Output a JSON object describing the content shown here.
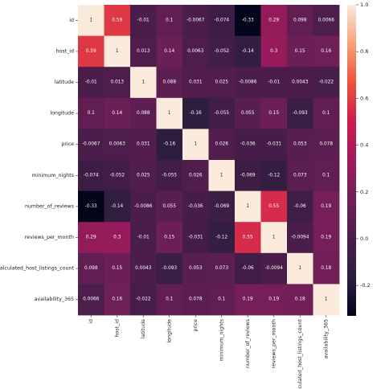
{
  "chart_data": {
    "type": "heatmap",
    "variables": [
      "id",
      "host_id",
      "latitude",
      "longitude",
      "price",
      "minimum_nights",
      "number_of_reviews",
      "reviews_per_month",
      "calculated_host_listings_count",
      "availability_365"
    ],
    "values": [
      [
        1,
        0.59,
        -0.01,
        0.1,
        -0.0067,
        -0.074,
        -0.33,
        0.29,
        0.098,
        0.0066
      ],
      [
        0.59,
        1,
        0.013,
        0.14,
        0.0063,
        -0.052,
        -0.14,
        0.3,
        0.15,
        0.16
      ],
      [
        -0.01,
        0.013,
        1,
        0.088,
        0.031,
        0.025,
        -0.0086,
        -0.01,
        0.0043,
        -0.022
      ],
      [
        0.1,
        0.14,
        0.088,
        1,
        -0.16,
        -0.055,
        0.055,
        0.15,
        -0.093,
        0.1
      ],
      [
        -0.0067,
        0.0063,
        0.031,
        -0.16,
        1,
        0.026,
        -0.036,
        -0.031,
        0.053,
        0.078
      ],
      [
        -0.074,
        -0.052,
        0.025,
        -0.055,
        0.026,
        1,
        -0.069,
        -0.12,
        0.073,
        0.1
      ],
      [
        -0.33,
        -0.14,
        -0.0086,
        0.055,
        -0.036,
        -0.069,
        1,
        0.55,
        -0.06,
        0.19
      ],
      [
        0.29,
        0.3,
        -0.01,
        0.15,
        -0.031,
        -0.12,
        0.55,
        1,
        -0.0094,
        0.19
      ],
      [
        0.098,
        0.15,
        0.0043,
        -0.093,
        0.053,
        0.073,
        -0.06,
        -0.0094,
        1,
        0.18
      ],
      [
        0.0066,
        0.16,
        -0.022,
        0.1,
        0.078,
        0.1,
        0.19,
        0.19,
        0.18,
        1
      ]
    ],
    "vmin": -0.33,
    "vmax": 1.0,
    "colormap": "rocket",
    "colorbar_ticks": [
      "1.0",
      "0.8",
      "0.6",
      "0.4",
      "0.2",
      "0.0",
      "-0.2"
    ],
    "colorbar_tick_values": [
      1.0,
      0.8,
      0.6,
      0.4,
      0.2,
      0.0,
      -0.2
    ],
    "annotated": true,
    "title": "",
    "xlabel": "",
    "ylabel": ""
  }
}
